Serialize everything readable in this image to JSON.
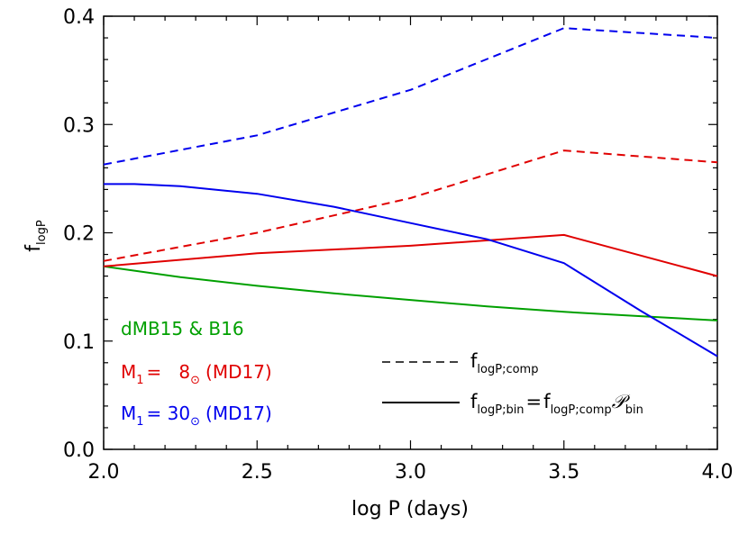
{
  "chart_data": {
    "type": "line",
    "title": "",
    "xlabel": "log P (days)",
    "ylabel": "f",
    "ylabel_sub": "logP",
    "xlim": [
      2.0,
      4.0
    ],
    "ylim": [
      0.0,
      0.4
    ],
    "x_ticks": [
      2.0,
      2.5,
      3.0,
      3.5,
      4.0
    ],
    "x_tick_labels": [
      "2.0",
      "2.5",
      "3.0",
      "3.5",
      "4.0"
    ],
    "y_ticks": [
      0.0,
      0.1,
      0.2,
      0.3,
      0.4
    ],
    "y_tick_labels": [
      "0.0",
      "0.1",
      "0.2",
      "0.3",
      "0.4"
    ],
    "series": [
      {
        "name": "dMB15 & B16",
        "color": "#00a000",
        "style": "solid",
        "x": [
          2.0,
          2.25,
          2.5,
          2.75,
          3.0,
          3.25,
          3.5,
          3.75,
          4.0
        ],
        "y": [
          0.169,
          0.159,
          0.151,
          0.144,
          0.138,
          0.132,
          0.127,
          0.123,
          0.119
        ]
      },
      {
        "name": "M1 = 8 Msun (MD17) f_logP;comp",
        "color": "#e00000",
        "style": "dashed",
        "x": [
          2.0,
          2.5,
          3.0,
          3.5,
          4.0
        ],
        "y": [
          0.174,
          0.2,
          0.232,
          0.276,
          0.265
        ]
      },
      {
        "name": "M1 = 8 Msun (MD17) f_logP;bin",
        "color": "#e00000",
        "style": "solid",
        "x": [
          2.0,
          2.5,
          3.0,
          3.5,
          4.0
        ],
        "y": [
          0.169,
          0.181,
          0.188,
          0.198,
          0.16
        ]
      },
      {
        "name": "M1 = 30 Msun (MD17) f_logP;comp",
        "color": "#0000ee",
        "style": "dashed",
        "x": [
          2.0,
          2.5,
          3.0,
          3.5,
          4.0
        ],
        "y": [
          0.263,
          0.29,
          0.332,
          0.389,
          0.38
        ]
      },
      {
        "name": "M1 = 30 Msun (MD17) f_logP;bin",
        "color": "#0000ee",
        "style": "solid",
        "x": [
          2.0,
          2.1,
          2.25,
          2.5,
          2.75,
          3.0,
          3.25,
          3.5,
          3.75,
          4.0
        ],
        "y": [
          0.245,
          0.245,
          0.243,
          0.236,
          0.224,
          0.209,
          0.194,
          0.172,
          0.128,
          0.086
        ]
      }
    ],
    "legend": {
      "colored_labels": [
        {
          "text": "dMB15 & B16",
          "color": "#00a000"
        },
        {
          "main": "M",
          "sub": "1",
          "eq": "=   8",
          "sun": "⊙",
          "tail": "(MD17)",
          "color": "#e00000"
        },
        {
          "main": "M",
          "sub": "1",
          "eq": "= 30",
          "sun": "⊙",
          "tail": "(MD17)",
          "color": "#0000ee"
        }
      ],
      "line_key": [
        {
          "style": "dashed",
          "f": "f",
          "sub": "logP;comp"
        },
        {
          "style": "solid",
          "f": "f",
          "sub": "logP;bin",
          "eq": "=",
          "f2": "f",
          "sub2": "logP;comp",
          "P": "𝒫",
          "sub3": "bin"
        }
      ],
      "position": "bottom"
    }
  }
}
